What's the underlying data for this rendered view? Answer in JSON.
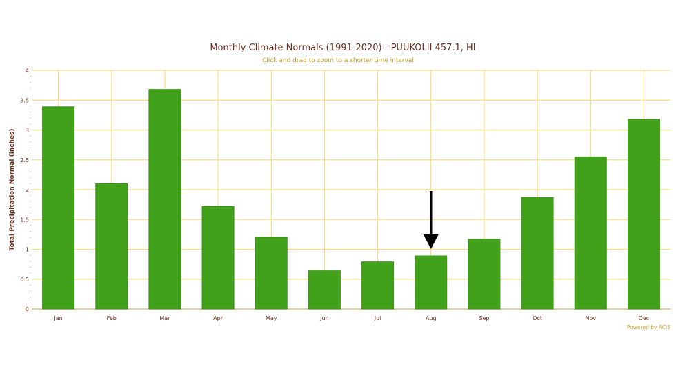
{
  "chart_data": {
    "type": "bar",
    "title": "Monthly Climate Normals (1991-2020) - PUUKOLII 457.1, HI",
    "subtitle": "Click and drag to zoom to a shorter time interval",
    "xlabel": "",
    "ylabel": "Total Precipitation Normal (inches)",
    "categories": [
      "Jan",
      "Feb",
      "Mar",
      "Apr",
      "May",
      "Jun",
      "Jul",
      "Aug",
      "Sep",
      "Oct",
      "Nov",
      "Dec"
    ],
    "values": [
      3.39,
      2.1,
      3.68,
      1.72,
      1.2,
      0.64,
      0.79,
      0.89,
      1.17,
      1.87,
      2.55,
      3.18
    ],
    "ylim": [
      0,
      4
    ],
    "yticks": [
      "0",
      "0.5",
      "1",
      "1.5",
      "2",
      "2.5",
      "3",
      "3.5",
      "4"
    ],
    "grid": true,
    "annotation": {
      "type": "arrow",
      "points_to": "Aug"
    },
    "credit": "Powered by ACIS",
    "colors": {
      "bar": "#42a11a",
      "grid": "#f7dc8a",
      "title": "#6b2a1a",
      "subtitle": "#c9a227"
    }
  }
}
